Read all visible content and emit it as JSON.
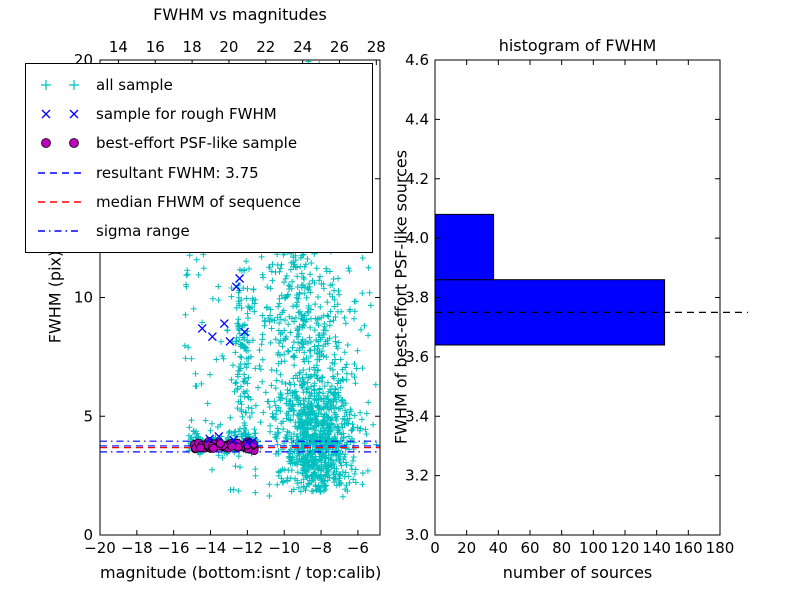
{
  "chart_data": [
    {
      "type": "scatter",
      "title": "FWHM vs magnitudes",
      "xlabel": "magnitude (bottom:isnt / top:calib)",
      "ylabel": "FWHM (pix)",
      "xlim": [
        -20,
        -4.8
      ],
      "ylim": [
        0,
        20
      ],
      "x_ticks_bottom": [
        -20,
        -18,
        -16,
        -14,
        -12,
        -10,
        -8,
        -6
      ],
      "x_ticks_top": [
        14,
        16,
        18,
        20,
        22,
        24,
        26,
        28
      ],
      "top_axis_offset": -33,
      "y_ticks": [
        0,
        5,
        10,
        15,
        20
      ],
      "grid": false,
      "legend_position": "upper left",
      "legend": [
        {
          "label": "all sample",
          "marker": "plus",
          "color": "#00bfbf"
        },
        {
          "label": "sample for rough FWHM",
          "marker": "x",
          "color": "#0000ff"
        },
        {
          "label": "best-effort PSF-like sample",
          "marker": "circle",
          "color": "#bf00bf"
        },
        {
          "label": "resultant FWHM: 3.75",
          "marker": "dashed",
          "color": "#0000ff"
        },
        {
          "label": "median FHWM of sequence",
          "marker": "dashed",
          "color": "#ff0000"
        },
        {
          "label": "sigma range",
          "marker": "dashdot",
          "color": "#0000ff"
        }
      ],
      "resultant_fwhm": 3.75,
      "hlines": [
        {
          "y": 3.75,
          "style": "dashed",
          "color": "#0000ff",
          "name": "resultant-fwhm-line"
        },
        {
          "y": 3.68,
          "style": "dashed",
          "color": "#ff0000",
          "name": "median-fwhm-line"
        },
        {
          "y": 3.95,
          "style": "dashdot",
          "color": "#0000ff",
          "name": "sigma-upper-line"
        },
        {
          "y": 3.5,
          "style": "dashdot",
          "color": "#0000ff",
          "name": "sigma-lower-line"
        }
      ],
      "series": [
        {
          "name": "all sample",
          "marker": "plus",
          "color": "#00bfbf",
          "clusters": [
            {
              "shape": "gauss",
              "n": 800,
              "cx": -8.2,
              "cy": 4.0,
              "sx": 1.0,
              "sy": 1.4,
              "ymin": 1.8
            },
            {
              "shape": "gauss",
              "n": 330,
              "cx": -8.8,
              "cy": 8.2,
              "sx": 1.2,
              "sy": 2.6,
              "ymin": 2.0
            },
            {
              "shape": "gauss",
              "n": 170,
              "cx": -9.4,
              "cy": 13.5,
              "sx": 0.9,
              "sy": 2.9
            },
            {
              "shape": "gauss",
              "n": 130,
              "cx": -12.2,
              "cy": 7.5,
              "sx": 0.3,
              "sy": 2.4,
              "ymin": 3.4
            },
            {
              "shape": "strip",
              "n": 150,
              "x0": -15.2,
              "x1": -11.4,
              "cy": 3.9,
              "sy": 0.3
            },
            {
              "shape": "uniform",
              "n": 270,
              "x0": -15.4,
              "x1": -5.4,
              "y0": 1.6,
              "y1": 20.4
            }
          ]
        },
        {
          "name": "sample for rough FWHM",
          "marker": "x",
          "color": "#0000ff",
          "points": [
            [
              -14.45,
              8.7
            ],
            [
              -13.9,
              8.35
            ],
            [
              -13.25,
              8.9
            ],
            [
              -12.95,
              8.15
            ],
            [
              -12.6,
              10.45
            ],
            [
              -12.42,
              10.8
            ],
            [
              -12.15,
              8.55
            ],
            [
              -13.55,
              4.15
            ],
            [
              -14.05,
              4.05
            ],
            [
              -12.75,
              4.0
            ],
            [
              -12.0,
              3.9
            ],
            [
              -11.7,
              3.95
            ]
          ]
        },
        {
          "name": "best-effort PSF-like sample",
          "marker": "circle",
          "color": "#bf00bf",
          "cluster": {
            "n": 70,
            "x0": -14.9,
            "x1": -11.6,
            "cy": 3.77,
            "sy": 0.08
          }
        }
      ]
    },
    {
      "type": "bar",
      "orientation": "horizontal",
      "title": "histogram of FWHM",
      "xlabel": "number of sources",
      "ylabel": "FWHM of best-effort PSF-like sources",
      "xlim": [
        0,
        180
      ],
      "ylim": [
        3.0,
        4.6
      ],
      "x_ticks": [
        0,
        20,
        40,
        60,
        80,
        100,
        120,
        140,
        160,
        180
      ],
      "y_ticks": [
        3.0,
        3.2,
        3.4,
        3.6,
        3.8,
        4.0,
        4.2,
        4.4,
        4.6
      ],
      "bar_color": "#0000ff",
      "bars": [
        {
          "from": 3.64,
          "to": 3.86,
          "count": 145
        },
        {
          "from": 3.86,
          "to": 4.08,
          "count": 37
        }
      ],
      "median_line": {
        "y": 3.75,
        "style": "dashed",
        "color": "#000000"
      }
    }
  ]
}
